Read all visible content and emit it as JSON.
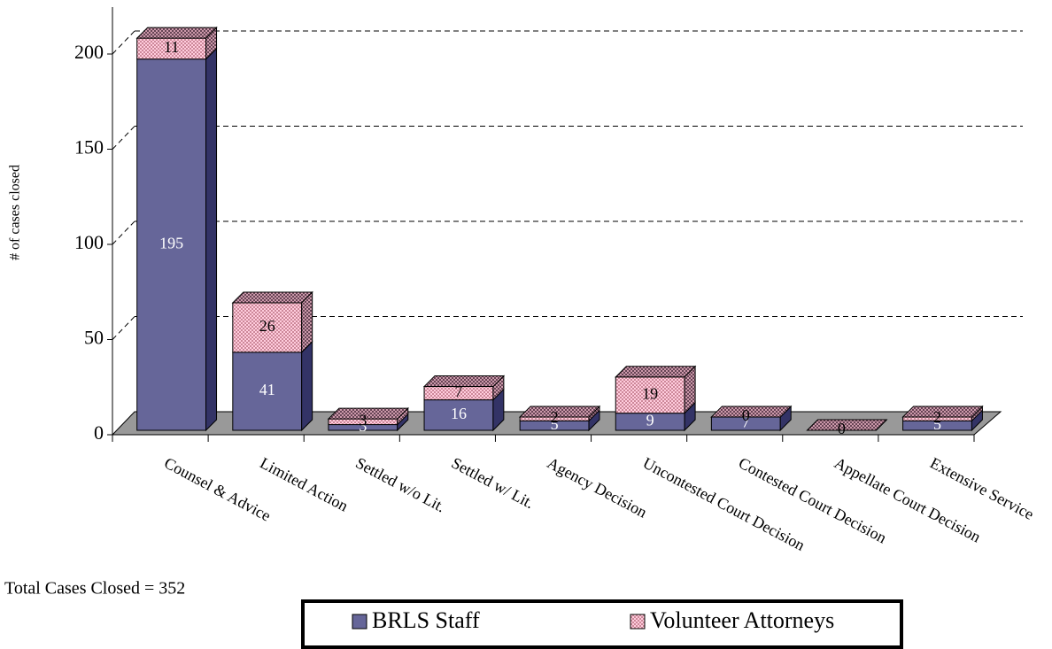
{
  "chart_data": {
    "type": "bar3d_stacked",
    "y_axis_label": "# of cases closed",
    "categories": [
      "Counsel & Advice",
      "Limited Action",
      "Settled w/o Lit.",
      "Settled w/ Lit.",
      "Agency Decision",
      "Uncontested Court Decision",
      "Contested Court Decision",
      "Appellate Court Decision",
      "Extensive Service"
    ],
    "series": [
      {
        "name": "BRLS Staff",
        "color": "#666699",
        "values": [
          195,
          41,
          3,
          16,
          5,
          9,
          7,
          0,
          5
        ]
      },
      {
        "name": "Volunteer Attorneys",
        "color": "#ffccdd",
        "values": [
          11,
          26,
          3,
          7,
          2,
          19,
          0,
          0,
          2
        ]
      }
    ],
    "ylim": [
      0,
      200
    ],
    "yticks": [
      0,
      50,
      100,
      150,
      200
    ],
    "grid": true,
    "note": "Total Cases Closed = 352"
  }
}
